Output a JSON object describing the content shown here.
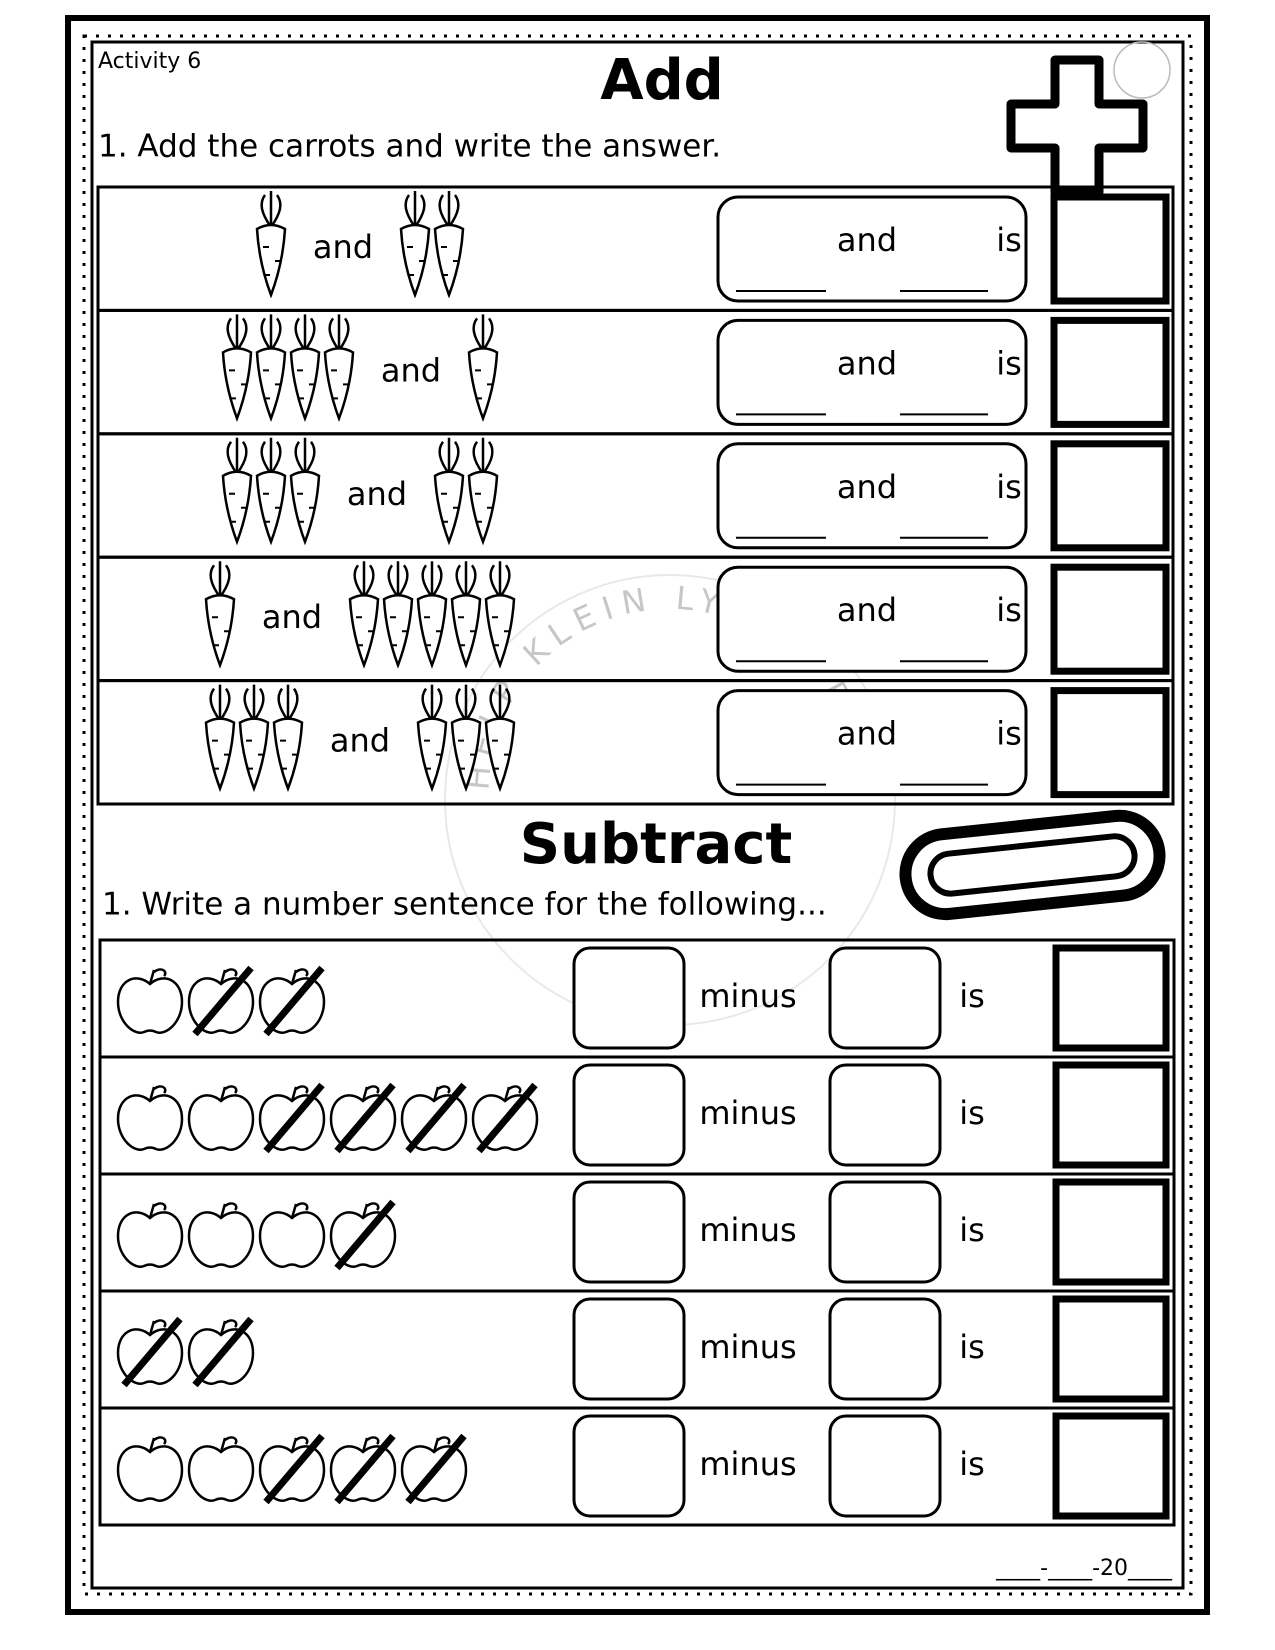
{
  "header": {
    "activity": "Activity 6",
    "add_title": "Add",
    "add_instruction": "1. Add the carrots and write the answer."
  },
  "add_rows": [
    {
      "left": 1,
      "connector": "and",
      "right": 2,
      "box_and": "and",
      "box_is": "is"
    },
    {
      "left": 4,
      "connector": "and",
      "right": 1,
      "box_and": "and",
      "box_is": "is"
    },
    {
      "left": 3,
      "connector": "and",
      "right": 2,
      "box_and": "and",
      "box_is": "is"
    },
    {
      "left": 1,
      "connector": "and",
      "right": 5,
      "box_and": "and",
      "box_is": "is"
    },
    {
      "left": 3,
      "connector": "and",
      "right": 3,
      "box_and": "and",
      "box_is": "is"
    }
  ],
  "subtract": {
    "title": "Subtract",
    "instruction": "1. Write a number sentence for the following..."
  },
  "subtract_rows": [
    {
      "apples": 3,
      "crossed": 2,
      "minus": "minus",
      "is": "is"
    },
    {
      "apples": 6,
      "crossed": 4,
      "minus": "minus",
      "is": "is"
    },
    {
      "apples": 4,
      "crossed": 1,
      "minus": "minus",
      "is": "is"
    },
    {
      "apples": 2,
      "crossed": 2,
      "minus": "minus",
      "is": "is"
    },
    {
      "apples": 5,
      "crossed": 3,
      "minus": "minus",
      "is": "is"
    }
  ],
  "watermark": "HELP KLEIN LYFIES DROOM",
  "footer": {
    "date_line": "____-____-20____"
  }
}
